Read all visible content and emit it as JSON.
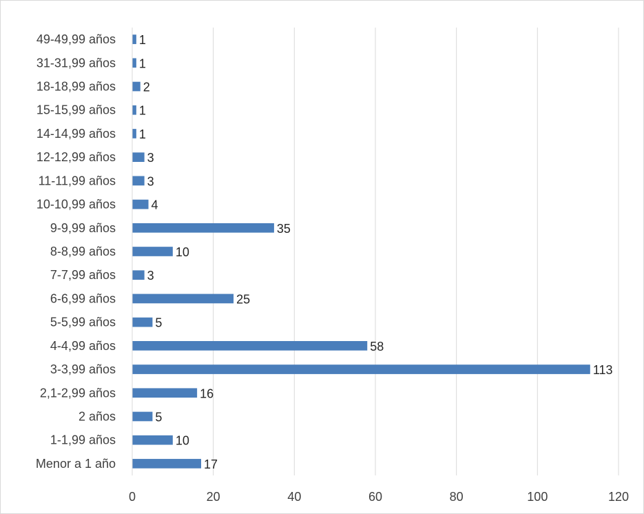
{
  "chart_data": {
    "type": "bar",
    "orientation": "horizontal",
    "title": "",
    "xlabel": "",
    "ylabel": "",
    "categories": [
      "Menor a 1 año",
      "1-1,99 años",
      "2 años",
      "2,1-2,99 años",
      "3-3,99 años",
      "4-4,99 años",
      "5-5,99 años",
      "6-6,99 años",
      "7-7,99 años",
      "8-8,99 años",
      "9-9,99 años",
      "10-10,99 años",
      "11-11,99 años",
      "12-12,99 años",
      "14-14,99 años",
      "15-15,99 años",
      "18-18,99 años",
      "31-31,99 años",
      "49-49,99 años"
    ],
    "values": [
      17,
      10,
      5,
      16,
      113,
      58,
      5,
      25,
      3,
      10,
      35,
      4,
      3,
      3,
      1,
      1,
      2,
      1,
      1
    ],
    "xlim": [
      0,
      120
    ],
    "xticks": [
      0,
      20,
      40,
      60,
      80,
      100,
      120
    ],
    "grid": "vertical",
    "legend": "none",
    "bar_color": "#4a7ebb",
    "grid_color": "#d9d9d9"
  }
}
